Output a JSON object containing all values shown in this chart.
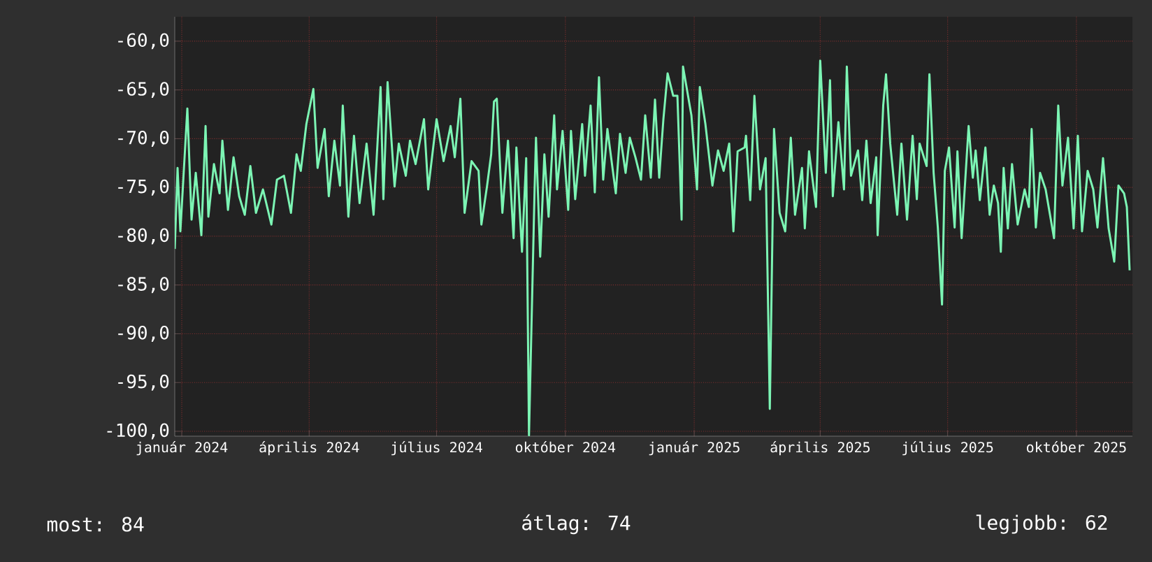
{
  "chart_data": {
    "type": "line",
    "color": "#7cf5b4",
    "grid": true,
    "x": [
      "2023-12-27",
      "2023-12-29",
      "2023-12-31",
      "2024-01-05",
      "2024-01-08",
      "2024-01-11",
      "2024-01-15",
      "2024-01-18",
      "2024-01-20",
      "2024-01-24",
      "2024-01-28",
      "2024-01-30",
      "2024-02-03",
      "2024-02-07",
      "2024-02-11",
      "2024-02-15",
      "2024-02-19",
      "2024-02-23",
      "2024-02-28",
      "2024-03-05",
      "2024-03-09",
      "2024-03-14",
      "2024-03-19",
      "2024-03-23",
      "2024-03-26",
      "2024-03-30",
      "2024-04-04",
      "2024-04-07",
      "2024-04-12",
      "2024-04-15",
      "2024-04-19",
      "2024-04-23",
      "2024-04-25",
      "2024-04-29",
      "2024-05-03",
      "2024-05-07",
      "2024-05-12",
      "2024-05-17",
      "2024-05-22",
      "2024-05-24",
      "2024-05-27",
      "2024-06-01",
      "2024-06-04",
      "2024-06-09",
      "2024-06-12",
      "2024-06-16",
      "2024-06-22",
      "2024-06-25",
      "2024-07-01",
      "2024-07-06",
      "2024-07-11",
      "2024-07-14",
      "2024-07-18",
      "2024-07-21",
      "2024-07-26",
      "2024-07-31",
      "2024-08-02",
      "2024-08-06",
      "2024-08-09",
      "2024-08-11",
      "2024-08-13",
      "2024-08-17",
      "2024-08-21",
      "2024-08-25",
      "2024-08-27",
      "2024-08-31",
      "2024-09-03",
      "2024-09-05",
      "2024-09-09",
      "2024-09-10",
      "2024-09-13",
      "2024-09-16",
      "2024-09-19",
      "2024-09-23",
      "2024-09-25",
      "2024-09-29",
      "2024-10-03",
      "2024-10-05",
      "2024-10-08",
      "2024-10-13",
      "2024-10-15",
      "2024-10-19",
      "2024-10-22",
      "2024-10-25",
      "2024-10-28",
      "2024-10-31",
      "2024-11-06",
      "2024-11-09",
      "2024-11-13",
      "2024-11-16",
      "2024-11-20",
      "2024-11-24",
      "2024-11-27",
      "2024-12-01",
      "2024-12-04",
      "2024-12-07",
      "2024-12-10",
      "2024-12-13",
      "2024-12-17",
      "2024-12-20",
      "2024-12-23",
      "2024-12-24",
      "2024-12-30",
      "2025-01-03",
      "2025-01-05",
      "2025-01-09",
      "2025-01-14",
      "2025-01-18",
      "2025-01-22",
      "2025-01-26",
      "2025-01-29",
      "2025-02-01",
      "2025-02-06",
      "2025-02-07",
      "2025-02-10",
      "2025-02-13",
      "2025-02-17",
      "2025-02-21",
      "2025-02-24",
      "2025-02-27",
      "2025-03-03",
      "2025-03-07",
      "2025-03-11",
      "2025-03-14",
      "2025-03-19",
      "2025-03-21",
      "2025-03-24",
      "2025-03-29",
      "2025-04-01",
      "2025-04-05",
      "2025-04-08",
      "2025-04-10",
      "2025-04-14",
      "2025-04-18",
      "2025-04-20",
      "2025-04-23",
      "2025-04-28",
      "2025-05-01",
      "2025-05-04",
      "2025-05-07",
      "2025-05-11",
      "2025-05-12",
      "2025-05-16",
      "2025-05-18",
      "2025-05-21",
      "2025-05-26",
      "2025-05-29",
      "2025-06-02",
      "2025-06-06",
      "2025-06-09",
      "2025-06-11",
      "2025-06-16",
      "2025-06-18",
      "2025-06-21",
      "2025-06-24",
      "2025-06-27",
      "2025-06-29",
      "2025-07-02",
      "2025-07-06",
      "2025-07-08",
      "2025-07-11",
      "2025-07-16",
      "2025-07-19",
      "2025-07-21",
      "2025-07-24",
      "2025-07-28",
      "2025-07-31",
      "2025-08-03",
      "2025-08-06",
      "2025-08-08",
      "2025-08-10",
      "2025-08-13",
      "2025-08-16",
      "2025-08-20",
      "2025-08-25",
      "2025-08-28",
      "2025-08-30",
      "2025-09-02",
      "2025-09-05",
      "2025-09-09",
      "2025-09-15",
      "2025-09-18",
      "2025-09-21",
      "2025-09-25",
      "2025-09-29",
      "2025-10-02",
      "2025-10-05",
      "2025-10-09",
      "2025-10-13",
      "2025-10-16",
      "2025-10-20",
      "2025-10-24",
      "2025-10-28",
      "2025-10-31",
      "2025-11-04",
      "2025-11-06",
      "2025-11-08"
    ],
    "values": [
      -81.3,
      -73.0,
      -79.5,
      -66.9,
      -78.3,
      -73.5,
      -79.9,
      -68.7,
      -78.0,
      -72.6,
      -75.6,
      -70.2,
      -77.3,
      -71.9,
      -75.9,
      -77.8,
      -72.8,
      -77.6,
      -75.2,
      -78.8,
      -74.2,
      -73.8,
      -77.6,
      -71.6,
      -73.3,
      -68.5,
      -64.9,
      -73.0,
      -69.0,
      -75.9,
      -70.2,
      -74.8,
      -66.6,
      -78.0,
      -69.7,
      -76.6,
      -70.5,
      -77.8,
      -64.7,
      -76.2,
      -64.2,
      -74.9,
      -70.5,
      -73.8,
      -70.2,
      -72.6,
      -68.0,
      -75.2,
      -68.0,
      -72.3,
      -68.7,
      -71.9,
      -65.9,
      -77.6,
      -72.3,
      -73.3,
      -78.8,
      -74.9,
      -71.6,
      -66.2,
      -65.9,
      -77.6,
      -70.2,
      -80.2,
      -70.9,
      -81.6,
      -72.0,
      -100.4,
      -75.2,
      -69.9,
      -82.1,
      -71.6,
      -78.0,
      -67.6,
      -75.2,
      -69.2,
      -77.3,
      -69.2,
      -76.2,
      -68.5,
      -73.8,
      -66.6,
      -75.5,
      -63.7,
      -74.2,
      -69.0,
      -75.6,
      -69.5,
      -73.5,
      -69.9,
      -71.9,
      -74.2,
      -67.6,
      -74.0,
      -66.0,
      -74.0,
      -68.0,
      -63.3,
      -65.6,
      -65.6,
      -78.3,
      -62.6,
      -67.6,
      -75.2,
      -64.7,
      -68.5,
      -74.8,
      -71.2,
      -73.3,
      -70.5,
      -79.5,
      -71.3,
      -70.9,
      -69.7,
      -76.3,
      -65.6,
      -75.2,
      -72.0,
      -97.7,
      -69.0,
      -77.6,
      -79.5,
      -69.9,
      -77.8,
      -73.0,
      -79.2,
      -71.3,
      -77.0,
      -62.0,
      -73.5,
      -64.0,
      -75.9,
      -68.3,
      -75.2,
      -62.6,
      -73.8,
      -71.2,
      -76.3,
      -70.2,
      -76.6,
      -71.9,
      -79.9,
      -66.6,
      -63.4,
      -70.5,
      -77.8,
      -70.5,
      -78.3,
      -69.7,
      -76.2,
      -70.5,
      -72.8,
      -63.4,
      -73.5,
      -79.1,
      -87.0,
      -73.3,
      -70.9,
      -79.1,
      -71.3,
      -80.2,
      -68.7,
      -74.0,
      -71.2,
      -76.3,
      -70.9,
      -77.8,
      -74.8,
      -76.6,
      -81.6,
      -73.0,
      -79.2,
      -72.6,
      -78.8,
      -75.2,
      -77.0,
      -69.0,
      -79.1,
      -73.5,
      -75.2,
      -80.2,
      -66.6,
      -74.8,
      -69.9,
      -79.2,
      -69.7,
      -79.5,
      -73.3,
      -75.2,
      -79.1,
      -72.0,
      -79.2,
      -82.6,
      -74.8,
      -75.6,
      -77.0,
      -83.5
    ],
    "xlim": [
      "2023-12-27",
      "2025-11-10"
    ],
    "xticks": [
      {
        "value": "2024-01-01",
        "label": "január 2024"
      },
      {
        "value": "2024-04-01",
        "label": "április 2024"
      },
      {
        "value": "2024-07-01",
        "label": "július 2024"
      },
      {
        "value": "2024-10-01",
        "label": "október 2024"
      },
      {
        "value": "2025-01-01",
        "label": "január 2025"
      },
      {
        "value": "2025-04-01",
        "label": "április 2025"
      },
      {
        "value": "2025-07-01",
        "label": "július 2025"
      },
      {
        "value": "2025-10-01",
        "label": "október 2025"
      }
    ],
    "ylim": [
      -100.5,
      -57.5
    ],
    "yticks": [
      {
        "value": -100,
        "label": "-100,0"
      },
      {
        "value": -95,
        "label": "-95,0"
      },
      {
        "value": -90,
        "label": "-90,0"
      },
      {
        "value": -85,
        "label": "-85,0"
      },
      {
        "value": -80,
        "label": "-80,0"
      },
      {
        "value": -75,
        "label": "-75,0"
      },
      {
        "value": -70,
        "label": "-70,0"
      },
      {
        "value": -65,
        "label": "-65,0"
      },
      {
        "value": -60,
        "label": "-60,0"
      }
    ],
    "annotations": [
      "most: 84",
      "átlag: 74",
      "legjobb: 62"
    ]
  }
}
